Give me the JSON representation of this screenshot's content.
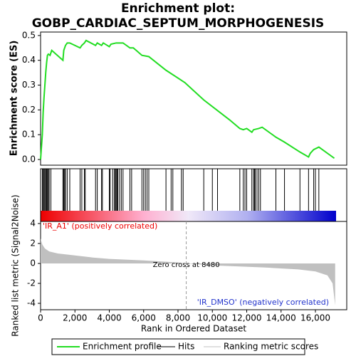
{
  "chart_data": [
    {
      "type": "line",
      "title": [
        "Enrichment plot:",
        "GOBP_CARDIAC_SEPTUM_MORPHOGENESIS"
      ],
      "ylabel": "Enrichment score (ES)",
      "x": [
        0,
        50,
        100,
        150,
        200,
        250,
        300,
        350,
        400,
        450,
        550,
        650,
        1300,
        1350,
        1450,
        1550,
        1700,
        2300,
        2400,
        2550,
        2650,
        3200,
        3300,
        3550,
        3650,
        4000,
        4100,
        4400,
        4800,
        5200,
        5400,
        5900,
        6300,
        7300,
        8400,
        9500,
        11000,
        11600,
        11800,
        12000,
        12300,
        12400,
        12700,
        12900,
        13700,
        14200,
        15100,
        15600,
        15700,
        15900,
        16200,
        17100
      ],
      "series": [
        {
          "name": "Enrichment profile",
          "color": "#22dd22",
          "values": [
            0,
            0.05,
            0.1,
            0.19,
            0.25,
            0.3,
            0.35,
            0.39,
            0.42,
            0.425,
            0.42,
            0.44,
            0.4,
            0.44,
            0.46,
            0.47,
            0.47,
            0.45,
            0.46,
            0.47,
            0.48,
            0.46,
            0.47,
            0.46,
            0.47,
            0.455,
            0.465,
            0.47,
            0.47,
            0.45,
            0.45,
            0.42,
            0.415,
            0.36,
            0.31,
            0.24,
            0.16,
            0.125,
            0.12,
            0.125,
            0.11,
            0.12,
            0.125,
            0.13,
            0.09,
            0.07,
            0.03,
            0.01,
            0.025,
            0.04,
            0.05,
            0.005
          ]
        }
      ],
      "xlim": [
        0,
        17824
      ],
      "ylim": [
        -0.023,
        0.514
      ],
      "yticks": [
        {
          "value": 0,
          "label": "0.0"
        },
        0.1,
        0.2,
        0.3,
        0.4,
        0.5
      ]
    },
    {
      "type": "hits",
      "name": "Hits",
      "color": "#000000",
      "xlim": [
        0,
        17824
      ],
      "x": [
        100,
        150,
        200,
        250,
        300,
        350,
        400,
        450,
        500,
        600,
        1300,
        1350,
        1400,
        1450,
        1550,
        1700,
        2300,
        2400,
        2550,
        2600,
        3200,
        3300,
        3550,
        3600,
        4000,
        4050,
        4200,
        4300,
        4350,
        4400,
        4450,
        4500,
        4600,
        4700,
        4800,
        5200,
        5300,
        5900,
        6000,
        6100,
        6200,
        6300,
        7300,
        7600,
        7700,
        8200,
        8300,
        9500,
        10000,
        10300,
        11600,
        11800,
        11900,
        12000,
        12300,
        12400,
        12450,
        12500,
        12600,
        12700,
        12800,
        13700,
        14200,
        15100,
        15600,
        15900,
        16000,
        16200
      ]
    },
    {
      "type": "area",
      "name": "Ranking metric scores",
      "color": "#c0c0c0",
      "ylabel": "Ranked list metric (Signal2Noise)",
      "xlabel": "Rank in Ordered Dataset",
      "x": [
        0,
        100,
        250,
        500,
        1000,
        2000,
        3000,
        4000,
        6000,
        8000,
        8480,
        10000,
        13000,
        15000,
        16000,
        16700,
        17000,
        17150
      ],
      "values": [
        2.5,
        1.9,
        1.5,
        1.2,
        1.0,
        0.8,
        0.6,
        0.45,
        0.3,
        0.1,
        0,
        -0.2,
        -0.4,
        -0.6,
        -0.8,
        -1.2,
        -2,
        -4.2
      ],
      "xlim": [
        0,
        17824
      ],
      "ylim": [
        -4.64,
        4.21
      ],
      "yticks": [
        4,
        2,
        0,
        -2,
        -4
      ],
      "xticks": [
        0,
        {
          "value": 2000,
          "label": "2,000"
        },
        {
          "value": 4000,
          "label": "4,000"
        },
        {
          "value": 6000,
          "label": "6,000"
        },
        {
          "value": 8000,
          "label": "8,000"
        },
        {
          "value": 10000,
          "label": "10,000"
        },
        {
          "value": 12000,
          "label": "12,000"
        },
        {
          "value": 14000,
          "label": "14,000"
        },
        {
          "value": 16000,
          "label": "16,000"
        }
      ],
      "pos_label": "'IR_A1' (positively correlated)",
      "neg_label": "'IR_DMSO' (negatively correlated)",
      "zero_cross": {
        "value": 8480,
        "label": "Zero cross at 8480"
      }
    }
  ]
}
